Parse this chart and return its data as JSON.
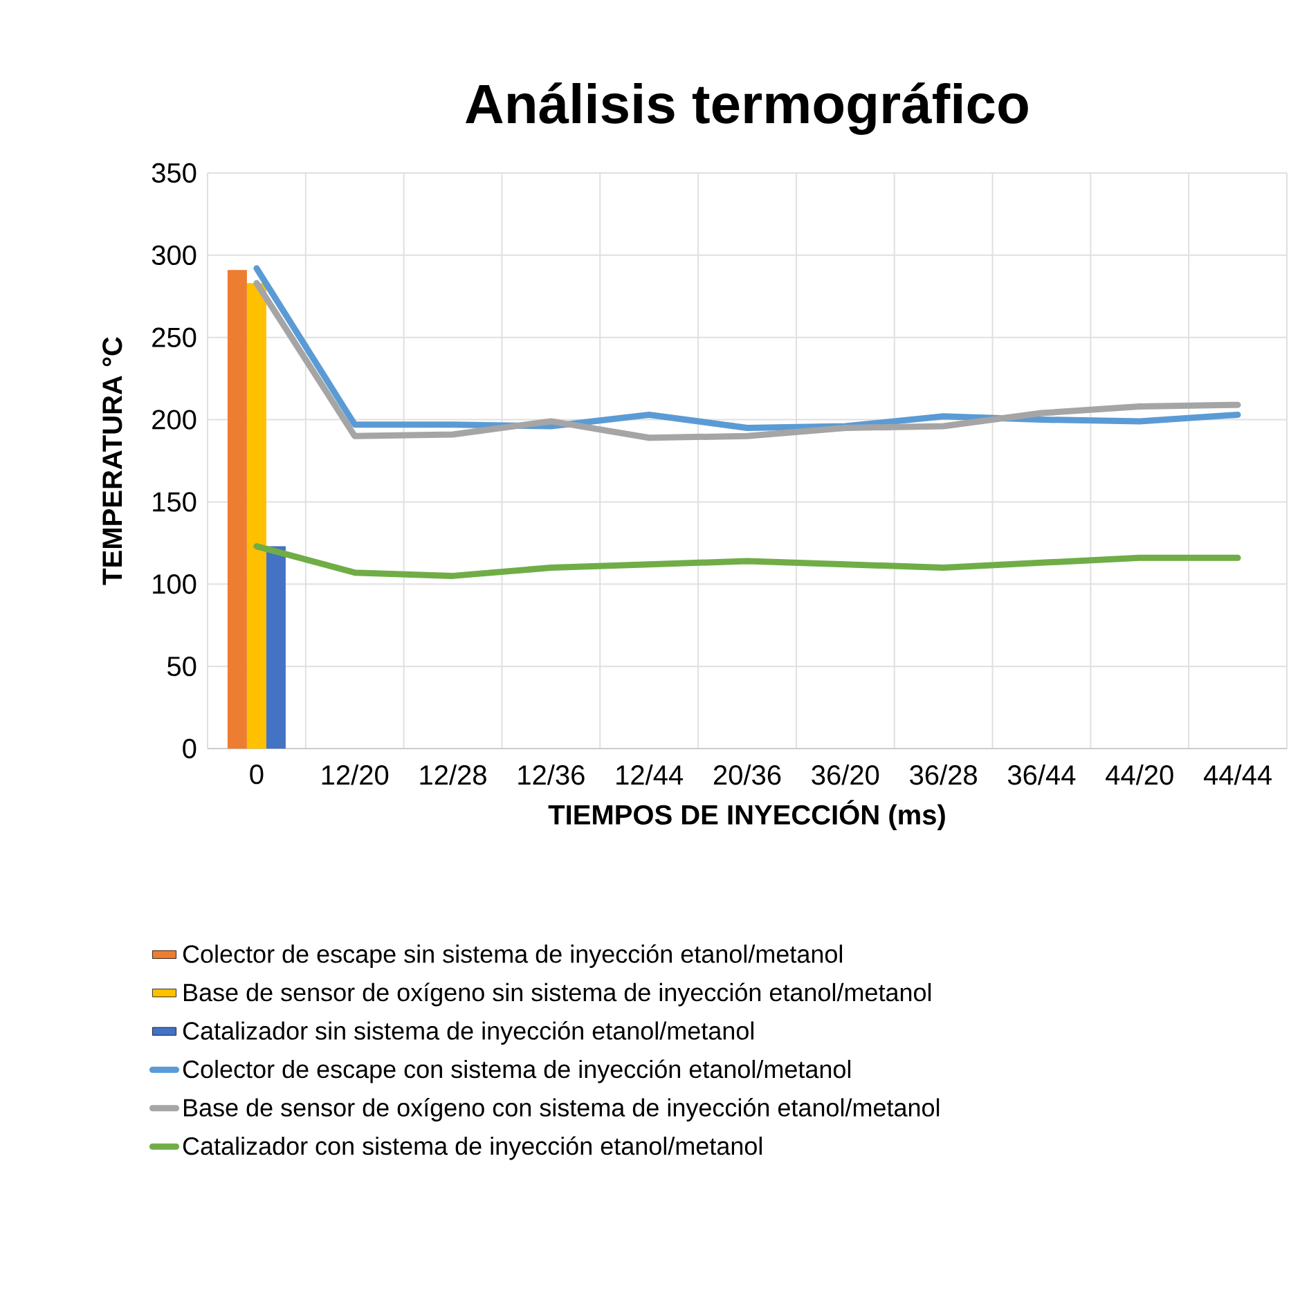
{
  "chart_data": {
    "type": "line",
    "title": "Análisis termográfico",
    "xlabel": "TIEMPOS DE INYECCIÓN (ms)",
    "ylabel": "TEMPERATURA °C",
    "categories": [
      "0",
      "12/20",
      "12/28",
      "12/36",
      "12/44",
      "20/36",
      "36/20",
      "36/28",
      "36/44",
      "44/20",
      "44/44"
    ],
    "series": [
      {
        "name": "Colector de escape sin sistema de inyección etanol/metanol",
        "type": "bar",
        "color": "#ed7d31",
        "values": [
          291,
          null,
          null,
          null,
          null,
          null,
          null,
          null,
          null,
          null,
          null
        ]
      },
      {
        "name": "Base de sensor de oxígeno sin sistema de inyección etanol/metanol",
        "type": "bar",
        "color": "#ffc000",
        "values": [
          283,
          null,
          null,
          null,
          null,
          null,
          null,
          null,
          null,
          null,
          null
        ]
      },
      {
        "name": "Catalizador sin sistema de inyección etanol/metanol",
        "type": "bar",
        "color": "#4472c4",
        "values": [
          123,
          null,
          null,
          null,
          null,
          null,
          null,
          null,
          null,
          null,
          null
        ]
      },
      {
        "name": "Colector de escape con sistema de inyección etanol/metanol",
        "color": "#5b9bd5",
        "values": [
          292,
          197,
          197,
          196,
          203,
          195,
          196,
          202,
          200,
          199,
          203
        ]
      },
      {
        "name": "Base de sensor de oxígeno con sistema de inyección etanol/metanol",
        "color": "#a5a5a5",
        "values": [
          283,
          190,
          191,
          199,
          189,
          190,
          195,
          196,
          204,
          208,
          209
        ]
      },
      {
        "name": "Catalizador con sistema de inyección etanol/metanol",
        "color": "#70ad47",
        "values": [
          123,
          107,
          105,
          110,
          112,
          114,
          112,
          110,
          113,
          116,
          116
        ]
      }
    ],
    "ylim": [
      0,
      350
    ],
    "yticks": [
      0,
      50,
      100,
      150,
      200,
      250,
      300,
      350
    ],
    "grid": true,
    "legend": "bottom",
    "marker": "none",
    "line_style": "solid"
  }
}
